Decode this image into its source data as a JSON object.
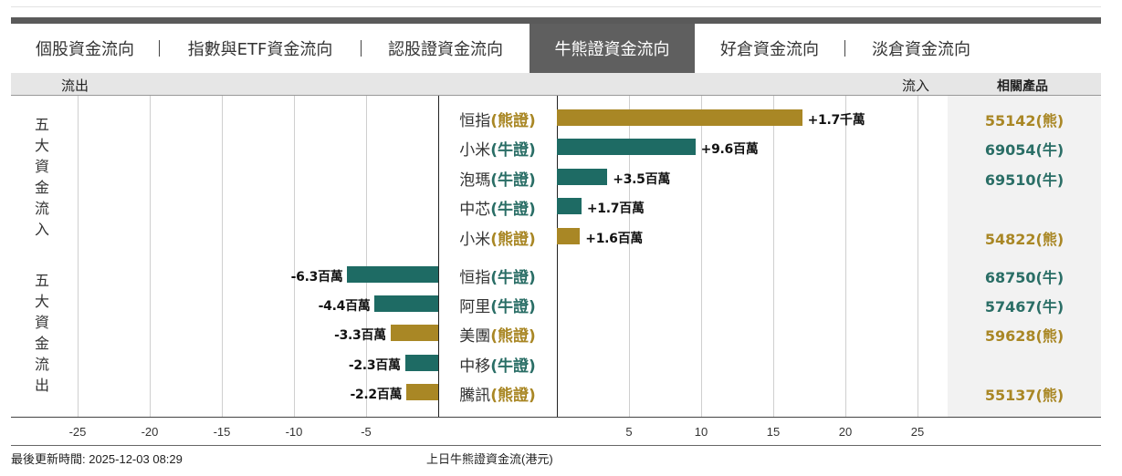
{
  "tabs": [
    {
      "label": "個股資金流向",
      "active": false
    },
    {
      "label": "指數與ETF資金流向",
      "active": false
    },
    {
      "label": "認股證資金流向",
      "active": false
    },
    {
      "label": "牛熊證資金流向",
      "active": true
    },
    {
      "label": "好倉資金流向",
      "active": false
    },
    {
      "label": "淡倉資金流向",
      "active": false
    }
  ],
  "header": {
    "outflow_label": "流出",
    "inflow_label": "流入",
    "related_label": "相關產品"
  },
  "groups": {
    "inflow_label": "五大資金流入",
    "outflow_label": "五大資金流出"
  },
  "colors": {
    "bull": "#1e6b64",
    "bear": "#a98725",
    "bull_text": "#2a6e66",
    "bear_text": "#a98725"
  },
  "chart_data": {
    "type": "bar",
    "orientation": "horizontal",
    "xlim": [
      -27,
      30
    ],
    "x_ticks": [
      -25,
      -20,
      -15,
      -10,
      -5,
      5,
      10,
      15,
      20,
      25
    ],
    "unit": "百萬港元",
    "rows": [
      {
        "name": "恒指",
        "type_label": "(熊證)",
        "kind": "bear",
        "value": 17,
        "value_label": "+1.7千萬",
        "product": "55142(熊)"
      },
      {
        "name": "小米",
        "type_label": "(牛證)",
        "kind": "bull",
        "value": 9.6,
        "value_label": "+9.6百萬",
        "product": "69054(牛)"
      },
      {
        "name": "泡瑪",
        "type_label": "(牛證)",
        "kind": "bull",
        "value": 3.5,
        "value_label": "+3.5百萬",
        "product": "69510(牛)"
      },
      {
        "name": "中芯",
        "type_label": "(牛證)",
        "kind": "bull",
        "value": 1.7,
        "value_label": "+1.7百萬",
        "product": ""
      },
      {
        "name": "小米",
        "type_label": "(熊證)",
        "kind": "bear",
        "value": 1.6,
        "value_label": "+1.6百萬",
        "product": "54822(熊)"
      },
      {
        "name": "恒指",
        "type_label": "(牛證)",
        "kind": "bull",
        "value": -6.3,
        "value_label": "-6.3百萬",
        "product": "68750(牛)"
      },
      {
        "name": "阿里",
        "type_label": "(牛證)",
        "kind": "bull",
        "value": -4.4,
        "value_label": "-4.4百萬",
        "product": "57467(牛)"
      },
      {
        "name": "美團",
        "type_label": "(熊證)",
        "kind": "bear",
        "value": -3.3,
        "value_label": "-3.3百萬",
        "product": "59628(熊)"
      },
      {
        "name": "中移",
        "type_label": "(牛證)",
        "kind": "bull",
        "value": -2.3,
        "value_label": "-2.3百萬",
        "product": ""
      },
      {
        "name": "騰訊",
        "type_label": "(熊證)",
        "kind": "bear",
        "value": -2.2,
        "value_label": "-2.2百萬",
        "product": "55137(熊)"
      }
    ]
  },
  "footer": {
    "updated": "最後更新時間: 2025-12-03 08:29",
    "caption": "上日牛熊證資金流(港元)"
  }
}
